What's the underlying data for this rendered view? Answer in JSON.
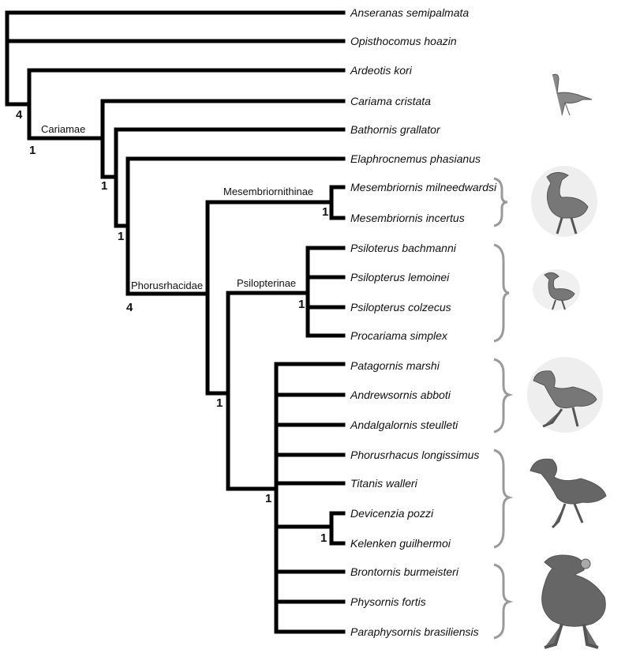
{
  "taxa": [
    "Anseranas semipalmata",
    "Opisthocomus hoazin",
    "Ardeotis kori",
    "Cariama cristata",
    "Bathornis grallator",
    "Elaphrocnemus phasianus",
    "Mesembriornis milneedwardsi",
    "Mesembriornis incertus",
    "Psiloterus bachmanni",
    "Psilopterus lemoinei",
    "Psilopterus colzecus",
    "Procariama simplex",
    "Patagornis marshi",
    "Andrewsornis abboti",
    "Andalgalornis steulleti",
    "Phorusrhacus longissimus",
    "Titanis walleri",
    "Devicenzia pozzi",
    "Kelenken guilhermoi",
    "Brontornis burmeisteri",
    "Physornis fortis",
    "Paraphysornis brasiliensis"
  ],
  "clades": {
    "cariamae": "Cariamae",
    "phorusrhacidae": "Phorusrhacidae",
    "mesembriornithinae": "Mesembriornithinae",
    "psilopterinae": "Psilopterinae"
  },
  "support": {
    "root": "4",
    "cariamae": "1",
    "n_cariama": "1",
    "n_bathornis": "1",
    "phorusrhacidae": "4",
    "mesembriornithinae": "1",
    "psilopterinae": "1",
    "n_psilo_sister": "1",
    "n_large": "1",
    "devicenzia_kelenken": "1"
  },
  "colors": {
    "lines": "#000000",
    "braces": "#9a9a9a",
    "birds": "#6e6e6e"
  }
}
